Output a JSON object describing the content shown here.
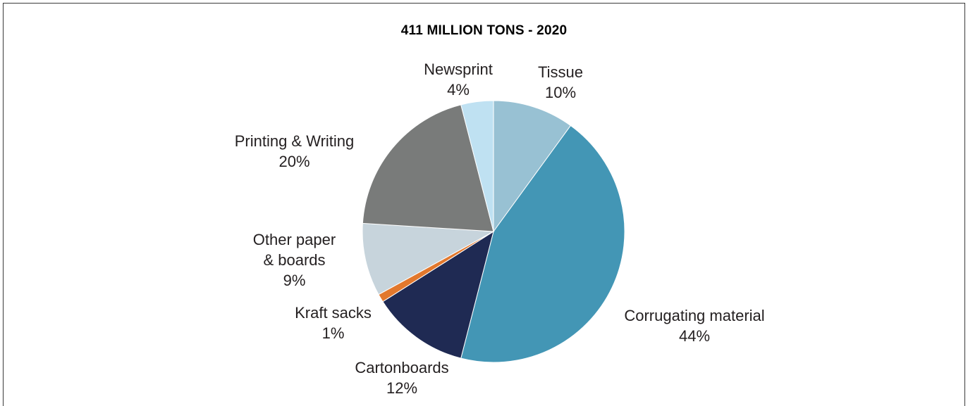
{
  "chart_data": {
    "type": "pie",
    "title": "411 MILLION TONS - 2020",
    "slices": [
      {
        "label": "Tissue",
        "value_label": "10%",
        "value": 10,
        "color": "#98c1d3"
      },
      {
        "label": "Corrugating material",
        "value_label": "44%",
        "value": 44,
        "color": "#4396b5"
      },
      {
        "label": "Cartonboards",
        "value_label": "12%",
        "value": 12,
        "color": "#1f2a53"
      },
      {
        "label": "Kraft sacks",
        "value_label": "1%",
        "value": 1,
        "color": "#e2782d"
      },
      {
        "label": "Other paper",
        "label_line2": "& boards",
        "value_label": "9%",
        "value": 9,
        "color": "#c7d4dc"
      },
      {
        "label": "Printing & Writing",
        "value_label": "20%",
        "value": 20,
        "color": "#797b7a"
      },
      {
        "label": "Newsprint",
        "value_label": "4%",
        "value": 4,
        "color": "#bfe1f2"
      }
    ]
  }
}
